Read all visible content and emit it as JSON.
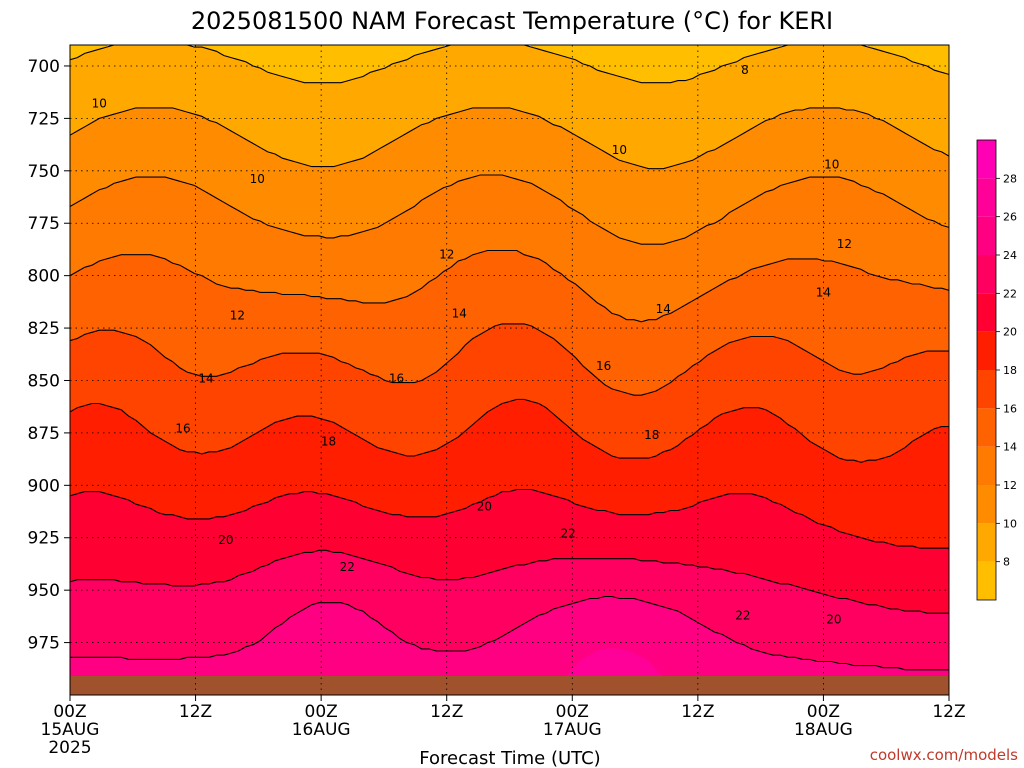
{
  "chart_data": {
    "type": "contour",
    "title": "2025081500 NAM Forecast Temperature (°C) for KERI",
    "xlabel": "Forecast Time (UTC)",
    "ylabel": "",
    "y_ticks": [
      700,
      725,
      750,
      775,
      800,
      825,
      850,
      875,
      900,
      925,
      950,
      975
    ],
    "ylim": [
      1000,
      690
    ],
    "y_scale": "linear (pressure, hPa, inverted)",
    "x_ticks": [
      {
        "hour": 0,
        "lines": [
          "00Z",
          "15AUG",
          "2025"
        ]
      },
      {
        "hour": 12,
        "lines": [
          "12Z"
        ]
      },
      {
        "hour": 24,
        "lines": [
          "00Z",
          "16AUG"
        ]
      },
      {
        "hour": 36,
        "lines": [
          "12Z"
        ]
      },
      {
        "hour": 48,
        "lines": [
          "00Z",
          "17AUG"
        ]
      },
      {
        "hour": 60,
        "lines": [
          "12Z"
        ]
      },
      {
        "hour": 72,
        "lines": [
          "00Z",
          "18AUG"
        ]
      },
      {
        "hour": 84,
        "lines": [
          "12Z"
        ]
      }
    ],
    "xlim": [
      0,
      84
    ],
    "grid": true,
    "contour_levels": [
      8,
      10,
      12,
      14,
      16,
      18,
      20,
      22,
      24
    ],
    "contour_labels": [
      {
        "text": "8",
        "hour": 64.5,
        "p": 702
      },
      {
        "text": "10",
        "hour": 2.8,
        "p": 718
      },
      {
        "text": "10",
        "hour": 17.9,
        "p": 754
      },
      {
        "text": "10",
        "hour": 52.5,
        "p": 740
      },
      {
        "text": "10",
        "hour": 72.8,
        "p": 747
      },
      {
        "text": "12",
        "hour": 16.0,
        "p": 819
      },
      {
        "text": "12",
        "hour": 36.0,
        "p": 790
      },
      {
        "text": "12",
        "hour": 74.0,
        "p": 785
      },
      {
        "text": "14",
        "hour": 13.0,
        "p": 849
      },
      {
        "text": "14",
        "hour": 37.2,
        "p": 818
      },
      {
        "text": "14",
        "hour": 56.7,
        "p": 816
      },
      {
        "text": "14",
        "hour": 72.0,
        "p": 808
      },
      {
        "text": "16",
        "hour": 10.8,
        "p": 873
      },
      {
        "text": "16",
        "hour": 31.2,
        "p": 849
      },
      {
        "text": "16",
        "hour": 51.0,
        "p": 843
      },
      {
        "text": "18",
        "hour": 24.7,
        "p": 879
      },
      {
        "text": "18",
        "hour": 55.6,
        "p": 876
      },
      {
        "text": "20",
        "hour": 14.9,
        "p": 926
      },
      {
        "text": "20",
        "hour": 39.6,
        "p": 910
      },
      {
        "text": "20",
        "hour": 73.0,
        "p": 964
      },
      {
        "text": "22",
        "hour": 26.5,
        "p": 939
      },
      {
        "text": "22",
        "hour": 47.6,
        "p": 923
      },
      {
        "text": "22",
        "hour": 64.3,
        "p": 962
      }
    ],
    "colorbar": {
      "ticks": [
        8,
        10,
        12,
        14,
        16,
        18,
        20,
        22,
        24,
        26,
        28
      ],
      "bands": [
        {
          "range": [
            6,
            8
          ],
          "color": "#ffbf00"
        },
        {
          "range": [
            8,
            10
          ],
          "color": "#ffa800"
        },
        {
          "range": [
            10,
            12
          ],
          "color": "#ff8c00"
        },
        {
          "range": [
            12,
            14
          ],
          "color": "#ff7a00"
        },
        {
          "range": [
            14,
            16
          ],
          "color": "#ff6200"
        },
        {
          "range": [
            16,
            18
          ],
          "color": "#ff4400"
        },
        {
          "range": [
            18,
            20
          ],
          "color": "#ff1e00"
        },
        {
          "range": [
            20,
            22
          ],
          "color": "#ff0033"
        },
        {
          "range": [
            22,
            24
          ],
          "color": "#ff0060"
        },
        {
          "range": [
            24,
            26
          ],
          "color": "#ff0082"
        },
        {
          "range": [
            26,
            28
          ],
          "color": "#ff0099"
        },
        {
          "range": [
            28,
            30
          ],
          "color": "#ff00b4"
        }
      ]
    },
    "terrain_color": "#a0522d",
    "credit": "coolwx.com/models"
  }
}
